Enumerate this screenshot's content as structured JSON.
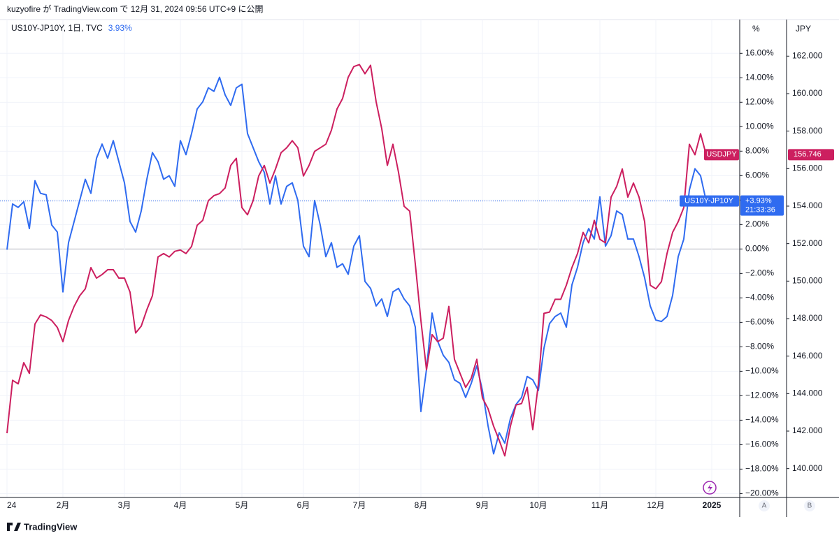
{
  "header": "kuzyofire が TradingView.com で 12月 31, 2024 09:56 UTC+9 に公開",
  "footer": "TradingView",
  "chart_data": {
    "type": "line",
    "legend": "US10Y-JP10Y, 1日, TVC",
    "legend_value": "3.93%",
    "y_axis_label": "%",
    "y2_axis_label": "JPY",
    "scale_buttons": [
      "A",
      "B"
    ],
    "categories": [
      "24",
      null,
      null,
      null,
      null,
      null,
      null,
      null,
      null,
      null,
      "2月",
      null,
      null,
      null,
      null,
      null,
      null,
      null,
      null,
      null,
      null,
      "3月",
      null,
      null,
      null,
      null,
      null,
      null,
      null,
      null,
      null,
      "4月",
      null,
      null,
      null,
      null,
      null,
      null,
      null,
      null,
      null,
      null,
      "5月",
      null,
      null,
      null,
      null,
      null,
      null,
      null,
      null,
      null,
      null,
      "6月",
      null,
      null,
      null,
      null,
      null,
      null,
      null,
      null,
      null,
      "7月",
      null,
      null,
      null,
      null,
      null,
      null,
      null,
      null,
      null,
      null,
      "8月",
      null,
      null,
      null,
      null,
      null,
      null,
      null,
      null,
      null,
      null,
      "9月",
      null,
      null,
      null,
      null,
      null,
      null,
      null,
      null,
      null,
      "10月",
      null,
      null,
      null,
      null,
      null,
      null,
      null,
      null,
      null,
      null,
      "11月",
      null,
      null,
      null,
      null,
      null,
      null,
      null,
      null,
      null,
      "12月",
      null,
      null,
      null,
      null,
      null,
      null,
      null,
      null,
      null,
      "2025"
    ],
    "series": [
      {
        "name": "US10Y-JP10Y",
        "color": "#2f6bf0",
        "axis": "y",
        "price_label": "+3.93%",
        "countdown": "21:33:36",
        "values": [
          -0.06,
          3.68,
          3.4,
          3.86,
          1.67,
          5.58,
          4.55,
          4.43,
          1.96,
          1.38,
          -3.51,
          0.52,
          2.24,
          3.97,
          5.7,
          4.55,
          7.42,
          8.58,
          7.42,
          8.86,
          7.14,
          5.41,
          2.24,
          1.38,
          3.11,
          5.7,
          7.88,
          7.14,
          5.7,
          5.99,
          5.12,
          8.86,
          7.71,
          9.44,
          11.45,
          12.03,
          13.18,
          12.89,
          14.04,
          12.6,
          11.74,
          13.18,
          13.47,
          9.44,
          8.29,
          7.14,
          6.27,
          3.68,
          5.99,
          3.68,
          5.12,
          5.41,
          3.97,
          0.23,
          -0.63,
          3.97,
          1.96,
          -0.63,
          0.52,
          -1.5,
          -1.21,
          -2.07,
          0.23,
          1.09,
          -2.65,
          -3.22,
          -4.66,
          -4.09,
          -5.52,
          -3.51,
          -3.22,
          -4.09,
          -4.66,
          -6.39,
          -13.29,
          -9.84,
          -5.24,
          -7.54,
          -8.69,
          -9.27,
          -10.7,
          -10.99,
          -12.14,
          -10.99,
          -9.55,
          -11.57,
          -14.45,
          -16.75,
          -15.02,
          -15.88,
          -13.87,
          -12.72,
          -12.14,
          -10.42,
          -10.7,
          -11.57,
          -8.11,
          -6.1,
          -5.52,
          -5.24,
          -6.39,
          -2.94,
          -1.5,
          0.52,
          1.67,
          0.81,
          4.26,
          0.23,
          1.09,
          3.11,
          2.82,
          0.81,
          0.81,
          -0.63,
          -2.36,
          -4.66,
          -5.81,
          -5.93,
          -5.52,
          -3.8,
          -0.63,
          0.81,
          4.83,
          6.56,
          5.99,
          3.93,
          null
        ]
      },
      {
        "name": "USDJPY",
        "color": "#cc1f5f",
        "axis": "y2",
        "price_label": "156.746",
        "values": [
          141.89,
          144.71,
          144.52,
          145.65,
          145.08,
          147.71,
          148.2,
          148.09,
          147.9,
          147.53,
          146.77,
          147.9,
          148.65,
          149.22,
          149.59,
          150.72,
          150.16,
          150.35,
          150.61,
          150.61,
          150.16,
          150.16,
          149.41,
          147.23,
          147.6,
          148.47,
          149.22,
          151.29,
          151.47,
          151.29,
          151.59,
          151.66,
          151.47,
          151.85,
          152.98,
          153.24,
          154.29,
          154.56,
          154.67,
          154.97,
          156.17,
          156.55,
          153.92,
          153.54,
          154.29,
          155.61,
          156.17,
          155.23,
          155.98,
          156.85,
          157.11,
          157.49,
          157.11,
          155.61,
          156.17,
          156.92,
          157.11,
          157.3,
          158.05,
          159.18,
          159.74,
          160.87,
          161.44,
          161.55,
          161.06,
          161.51,
          159.56,
          158.13,
          156.17,
          157.3,
          155.8,
          153.99,
          153.73,
          150.91,
          147.9,
          145.27,
          147.15,
          146.77,
          146.96,
          148.65,
          145.83,
          145.08,
          144.33,
          144.82,
          145.83,
          143.77,
          143.2,
          142.26,
          141.51,
          140.68,
          142.26,
          143.39,
          143.47,
          144.33,
          142.08,
          144.52,
          148.28,
          148.35,
          149.03,
          149.03,
          149.78,
          150.72,
          151.47,
          152.6,
          152.04,
          153.24,
          152.23,
          152.04,
          154.48,
          155.05,
          155.98,
          154.48,
          155.23,
          154.48,
          153.17,
          149.78,
          149.59,
          149.97,
          151.47,
          152.6,
          153.17,
          153.92,
          157.3,
          156.74,
          157.86,
          156.746,
          null
        ]
      }
    ],
    "ylim": [
      -20.32,
      18.76
    ],
    "yticks": [
      {
        "value": 16,
        "label": "16.00%"
      },
      {
        "value": 14,
        "label": "14.00%"
      },
      {
        "value": 12,
        "label": "12.00%"
      },
      {
        "value": 10,
        "label": "10.00%"
      },
      {
        "value": 8,
        "label": "8.00%"
      },
      {
        "value": 6,
        "label": "6.00%"
      },
      {
        "value": 4,
        "label": "4.00%"
      },
      {
        "value": 2,
        "label": "2.00%"
      },
      {
        "value": 0,
        "label": "0.00%"
      },
      {
        "value": -2,
        "label": "−2.00%"
      },
      {
        "value": -4,
        "label": "−4.00%"
      },
      {
        "value": -6,
        "label": "−6.00%"
      },
      {
        "value": -8,
        "label": "−8.00%"
      },
      {
        "value": -10,
        "label": "−10.00%"
      },
      {
        "value": -12,
        "label": "−12.00%"
      },
      {
        "value": -14,
        "label": "−14.00%"
      },
      {
        "value": -16,
        "label": "−16.00%"
      },
      {
        "value": -18,
        "label": "−18.00%"
      },
      {
        "value": -20,
        "label": "−20.00%"
      }
    ],
    "y2lim": [
      138.46,
      163.95
    ],
    "y2ticks": [
      {
        "value": 140,
        "label": "140.000"
      },
      {
        "value": 142,
        "label": "142.000"
      },
      {
        "value": 144,
        "label": "144.000"
      },
      {
        "value": 146,
        "label": "146.000"
      },
      {
        "value": 148,
        "label": "148.000"
      },
      {
        "value": 150,
        "label": "150.000"
      },
      {
        "value": 152,
        "label": "152.000"
      },
      {
        "value": 154,
        "label": "154.000"
      },
      {
        "value": 156,
        "label": "156.000"
      },
      {
        "value": 158,
        "label": "158.000"
      },
      {
        "value": 160,
        "label": "160.000"
      },
      {
        "value": 162,
        "label": "162.000"
      }
    ],
    "grid": true
  }
}
